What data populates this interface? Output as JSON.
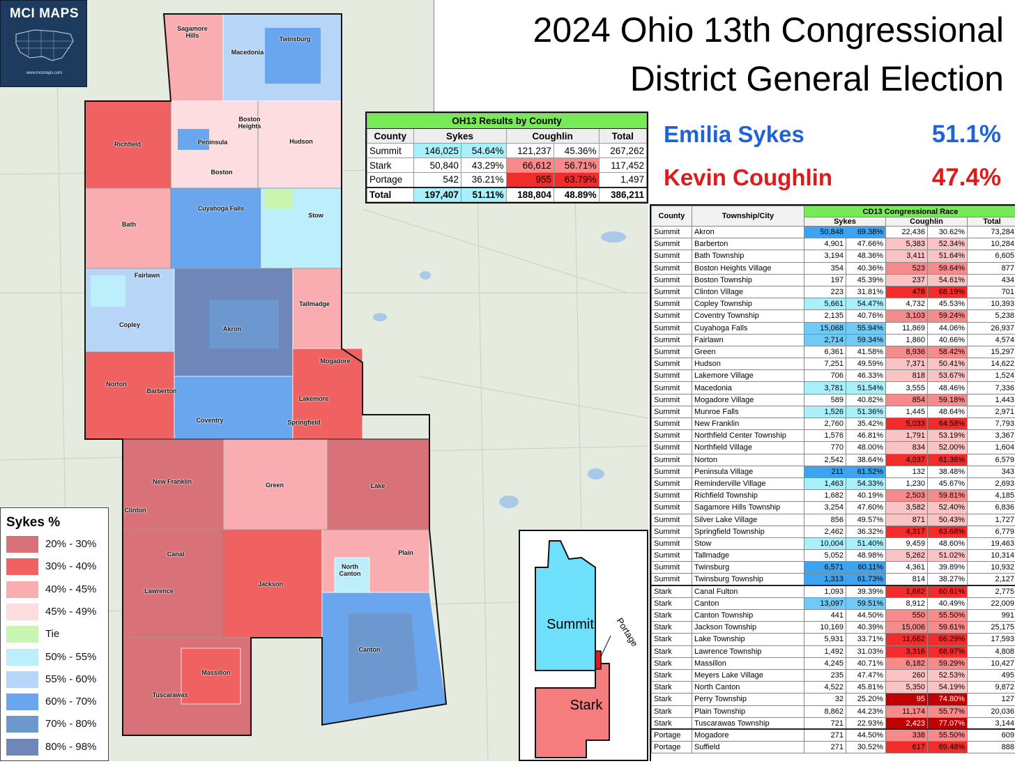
{
  "logo": {
    "title": "MCI MAPS",
    "url": "www.mcimaps.com"
  },
  "title": {
    "line1": "2024 Ohio 13th Congressional",
    "line2": "District General Election"
  },
  "results": [
    {
      "name": "Emilia Sykes",
      "pct": "51.1%",
      "color": "#1f63d6"
    },
    {
      "name": "Kevin Coughlin",
      "pct": "47.4%",
      "color": "#de1a1a"
    }
  ],
  "county_table": {
    "caption": "OH13 Results by County",
    "headers": [
      "County",
      "Sykes",
      "Coughlin",
      "Total"
    ],
    "rows": [
      [
        "Summit",
        "146,025",
        "54.64%",
        "121,237",
        "45.36%",
        "267,262"
      ],
      [
        "Stark",
        "50,840",
        "43.29%",
        "66,612",
        "56.71%",
        "117,452"
      ],
      [
        "Portage",
        "542",
        "36.21%",
        "955",
        "63.79%",
        "1,497"
      ]
    ],
    "total": [
      "Total",
      "197,407",
      "51.11%",
      "188,804",
      "48.89%",
      "386,211"
    ]
  },
  "big_table": {
    "caption": "CD13 Congressional Race",
    "headers": [
      "County",
      "Township/City",
      "Sykes",
      "Coughlin",
      "Total"
    ],
    "rows": [
      [
        "Summit",
        "Akron",
        "50,848",
        "69.38%",
        "22,436",
        "30.62%",
        "73,284"
      ],
      [
        "Summit",
        "Barberton",
        "4,901",
        "47.66%",
        "5,383",
        "52.34%",
        "10,284"
      ],
      [
        "Summit",
        "Bath Township",
        "3,194",
        "48.36%",
        "3,411",
        "51.64%",
        "6,605"
      ],
      [
        "Summit",
        "Boston Heights Village",
        "354",
        "40.36%",
        "523",
        "59.64%",
        "877"
      ],
      [
        "Summit",
        "Boston Township",
        "197",
        "45.39%",
        "237",
        "54.61%",
        "434"
      ],
      [
        "Summit",
        "Clinton Village",
        "223",
        "31.81%",
        "478",
        "68.19%",
        "701"
      ],
      [
        "Summit",
        "Copley Township",
        "5,661",
        "54.47%",
        "4,732",
        "45.53%",
        "10,393"
      ],
      [
        "Summit",
        "Coventry Township",
        "2,135",
        "40.76%",
        "3,103",
        "59.24%",
        "5,238"
      ],
      [
        "Summit",
        "Cuyahoga Falls",
        "15,068",
        "55.94%",
        "11,869",
        "44.06%",
        "26,937"
      ],
      [
        "Summit",
        "Fairlawn",
        "2,714",
        "59.34%",
        "1,860",
        "40.66%",
        "4,574"
      ],
      [
        "Summit",
        "Green",
        "6,361",
        "41.58%",
        "8,936",
        "58.42%",
        "15,297"
      ],
      [
        "Summit",
        "Hudson",
        "7,251",
        "49.59%",
        "7,371",
        "50.41%",
        "14,622"
      ],
      [
        "Summit",
        "Lakemore Village",
        "706",
        "46.33%",
        "818",
        "53.67%",
        "1,524"
      ],
      [
        "Summit",
        "Macedonia",
        "3,781",
        "51.54%",
        "3,555",
        "48.46%",
        "7,336"
      ],
      [
        "Summit",
        "Mogadore Village",
        "589",
        "40.82%",
        "854",
        "59.18%",
        "1,443"
      ],
      [
        "Summit",
        "Munroe Falls",
        "1,526",
        "51.36%",
        "1,445",
        "48.64%",
        "2,971"
      ],
      [
        "Summit",
        "New Franklin",
        "2,760",
        "35.42%",
        "5,033",
        "64.58%",
        "7,793"
      ],
      [
        "Summit",
        "Northfield Center Township",
        "1,576",
        "46.81%",
        "1,791",
        "53.19%",
        "3,367"
      ],
      [
        "Summit",
        "Northfield Village",
        "770",
        "48.00%",
        "834",
        "52.00%",
        "1,604"
      ],
      [
        "Summit",
        "Norton",
        "2,542",
        "38.64%",
        "4,037",
        "61.36%",
        "6,579"
      ],
      [
        "Summit",
        "Peninsula Village",
        "211",
        "61.52%",
        "132",
        "38.48%",
        "343"
      ],
      [
        "Summit",
        "Reminderville Village",
        "1,463",
        "54.33%",
        "1,230",
        "45.67%",
        "2,693"
      ],
      [
        "Summit",
        "Richfield Township",
        "1,682",
        "40.19%",
        "2,503",
        "59.81%",
        "4,185"
      ],
      [
        "Summit",
        "Sagamore Hills Township",
        "3,254",
        "47.60%",
        "3,582",
        "52.40%",
        "6,836"
      ],
      [
        "Summit",
        "Silver Lake Village",
        "856",
        "49.57%",
        "871",
        "50.43%",
        "1,727"
      ],
      [
        "Summit",
        "Springfield Township",
        "2,462",
        "36.32%",
        "4,317",
        "63.68%",
        "6,779"
      ],
      [
        "Summit",
        "Stow",
        "10,004",
        "51.40%",
        "9,459",
        "48.60%",
        "19,463"
      ],
      [
        "Summit",
        "Tallmadge",
        "5,052",
        "48.98%",
        "5,262",
        "51.02%",
        "10,314"
      ],
      [
        "Summit",
        "Twinsburg",
        "6,571",
        "60.11%",
        "4,361",
        "39.89%",
        "10,932"
      ],
      [
        "Summit",
        "Twinsburg Township",
        "1,313",
        "61.73%",
        "814",
        "38.27%",
        "2,127"
      ],
      [
        "Stark",
        "Canal Fulton",
        "1,093",
        "39.39%",
        "1,682",
        "60.61%",
        "2,775"
      ],
      [
        "Stark",
        "Canton",
        "13,097",
        "59.51%",
        "8,912",
        "40.49%",
        "22,009"
      ],
      [
        "Stark",
        "Canton Township",
        "441",
        "44.50%",
        "550",
        "55.50%",
        "991"
      ],
      [
        "Stark",
        "Jackson Township",
        "10,169",
        "40.39%",
        "15,006",
        "59.61%",
        "25,175"
      ],
      [
        "Stark",
        "Lake Township",
        "5,931",
        "33.71%",
        "11,662",
        "66.29%",
        "17,593"
      ],
      [
        "Stark",
        "Lawrence Township",
        "1,492",
        "31.03%",
        "3,316",
        "68.97%",
        "4,808"
      ],
      [
        "Stark",
        "Massillon",
        "4,245",
        "40.71%",
        "6,182",
        "59.29%",
        "10,427"
      ],
      [
        "Stark",
        "Meyers Lake Village",
        "235",
        "47.47%",
        "260",
        "52.53%",
        "495"
      ],
      [
        "Stark",
        "North Canton",
        "4,522",
        "45.81%",
        "5,350",
        "54.19%",
        "9,872"
      ],
      [
        "Stark",
        "Perry Township",
        "32",
        "25.20%",
        "95",
        "74.80%",
        "127"
      ],
      [
        "Stark",
        "Plain Township",
        "8,862",
        "44.23%",
        "11,174",
        "55.77%",
        "20,036"
      ],
      [
        "Stark",
        "Tuscarawas Township",
        "721",
        "22.93%",
        "2,423",
        "77.07%",
        "3,144"
      ],
      [
        "Portage",
        "Mogadore",
        "271",
        "44.50%",
        "338",
        "55.50%",
        "609"
      ],
      [
        "Portage",
        "Suffield",
        "271",
        "30.52%",
        "617",
        "69.48%",
        "888"
      ]
    ]
  },
  "legend": {
    "title": "Sykes  %",
    "items": [
      {
        "label": "20% - 30%",
        "color": "#d97278"
      },
      {
        "label": "30% - 40%",
        "color": "#f06262"
      },
      {
        "label": "40% - 45%",
        "color": "#f9adb1"
      },
      {
        "label": "45% - 49%",
        "color": "#fddde0"
      },
      {
        "label": "Tie",
        "color": "#c8f5b0"
      },
      {
        "label": "50% - 55%",
        "color": "#bdeefc"
      },
      {
        "label": "55% - 60%",
        "color": "#b6d5f7"
      },
      {
        "label": "60% - 70%",
        "color": "#6aa6ee"
      },
      {
        "label": "70% - 80%",
        "color": "#6d97cf"
      },
      {
        "label": "80% - 98%",
        "color": "#6f87b8"
      }
    ]
  },
  "map_places": [
    {
      "name": "Sagamore\nHills",
      "size": "s"
    },
    {
      "name": "Macedonia",
      "size": "s"
    },
    {
      "name": "Twinsburg",
      "size": "s"
    },
    {
      "name": "Boston\nHeights",
      "size": "s"
    },
    {
      "name": "Richfield",
      "size": "s"
    },
    {
      "name": "Peninsula",
      "size": "s"
    },
    {
      "name": "Hudson",
      "size": "s"
    },
    {
      "name": "Boston",
      "size": "s"
    },
    {
      "name": "Cuyahoga Falls",
      "size": "s"
    },
    {
      "name": "Bath",
      "size": "s"
    },
    {
      "name": "Stow",
      "size": "s"
    },
    {
      "name": "Fairlawn",
      "size": "s"
    },
    {
      "name": "Tallmadge",
      "size": "s"
    },
    {
      "name": "Copley",
      "size": "s"
    },
    {
      "name": "Akron",
      "size": "s"
    },
    {
      "name": "Mogadore",
      "size": "s"
    },
    {
      "name": "Norton",
      "size": "s"
    },
    {
      "name": "Lakemore",
      "size": "s"
    },
    {
      "name": "Barberton",
      "size": "s"
    },
    {
      "name": "Coventry",
      "size": "s"
    },
    {
      "name": "Springfield",
      "size": "s"
    },
    {
      "name": "New Franklin",
      "size": "s"
    },
    {
      "name": "Green",
      "size": "s"
    },
    {
      "name": "Lake",
      "size": "s"
    },
    {
      "name": "Clinton",
      "size": "s"
    },
    {
      "name": "Canal",
      "size": "s"
    },
    {
      "name": "Plain",
      "size": "s"
    },
    {
      "name": "North\nCanton",
      "size": "s"
    },
    {
      "name": "Lawrence",
      "size": "s"
    },
    {
      "name": "Jackson",
      "size": "s"
    },
    {
      "name": "Canton",
      "size": "s"
    },
    {
      "name": "Massillon",
      "size": "s"
    },
    {
      "name": "Tuscarawas",
      "size": "s"
    }
  ],
  "inset": {
    "labels": [
      "Summit",
      "Stark",
      "Portage"
    ]
  }
}
